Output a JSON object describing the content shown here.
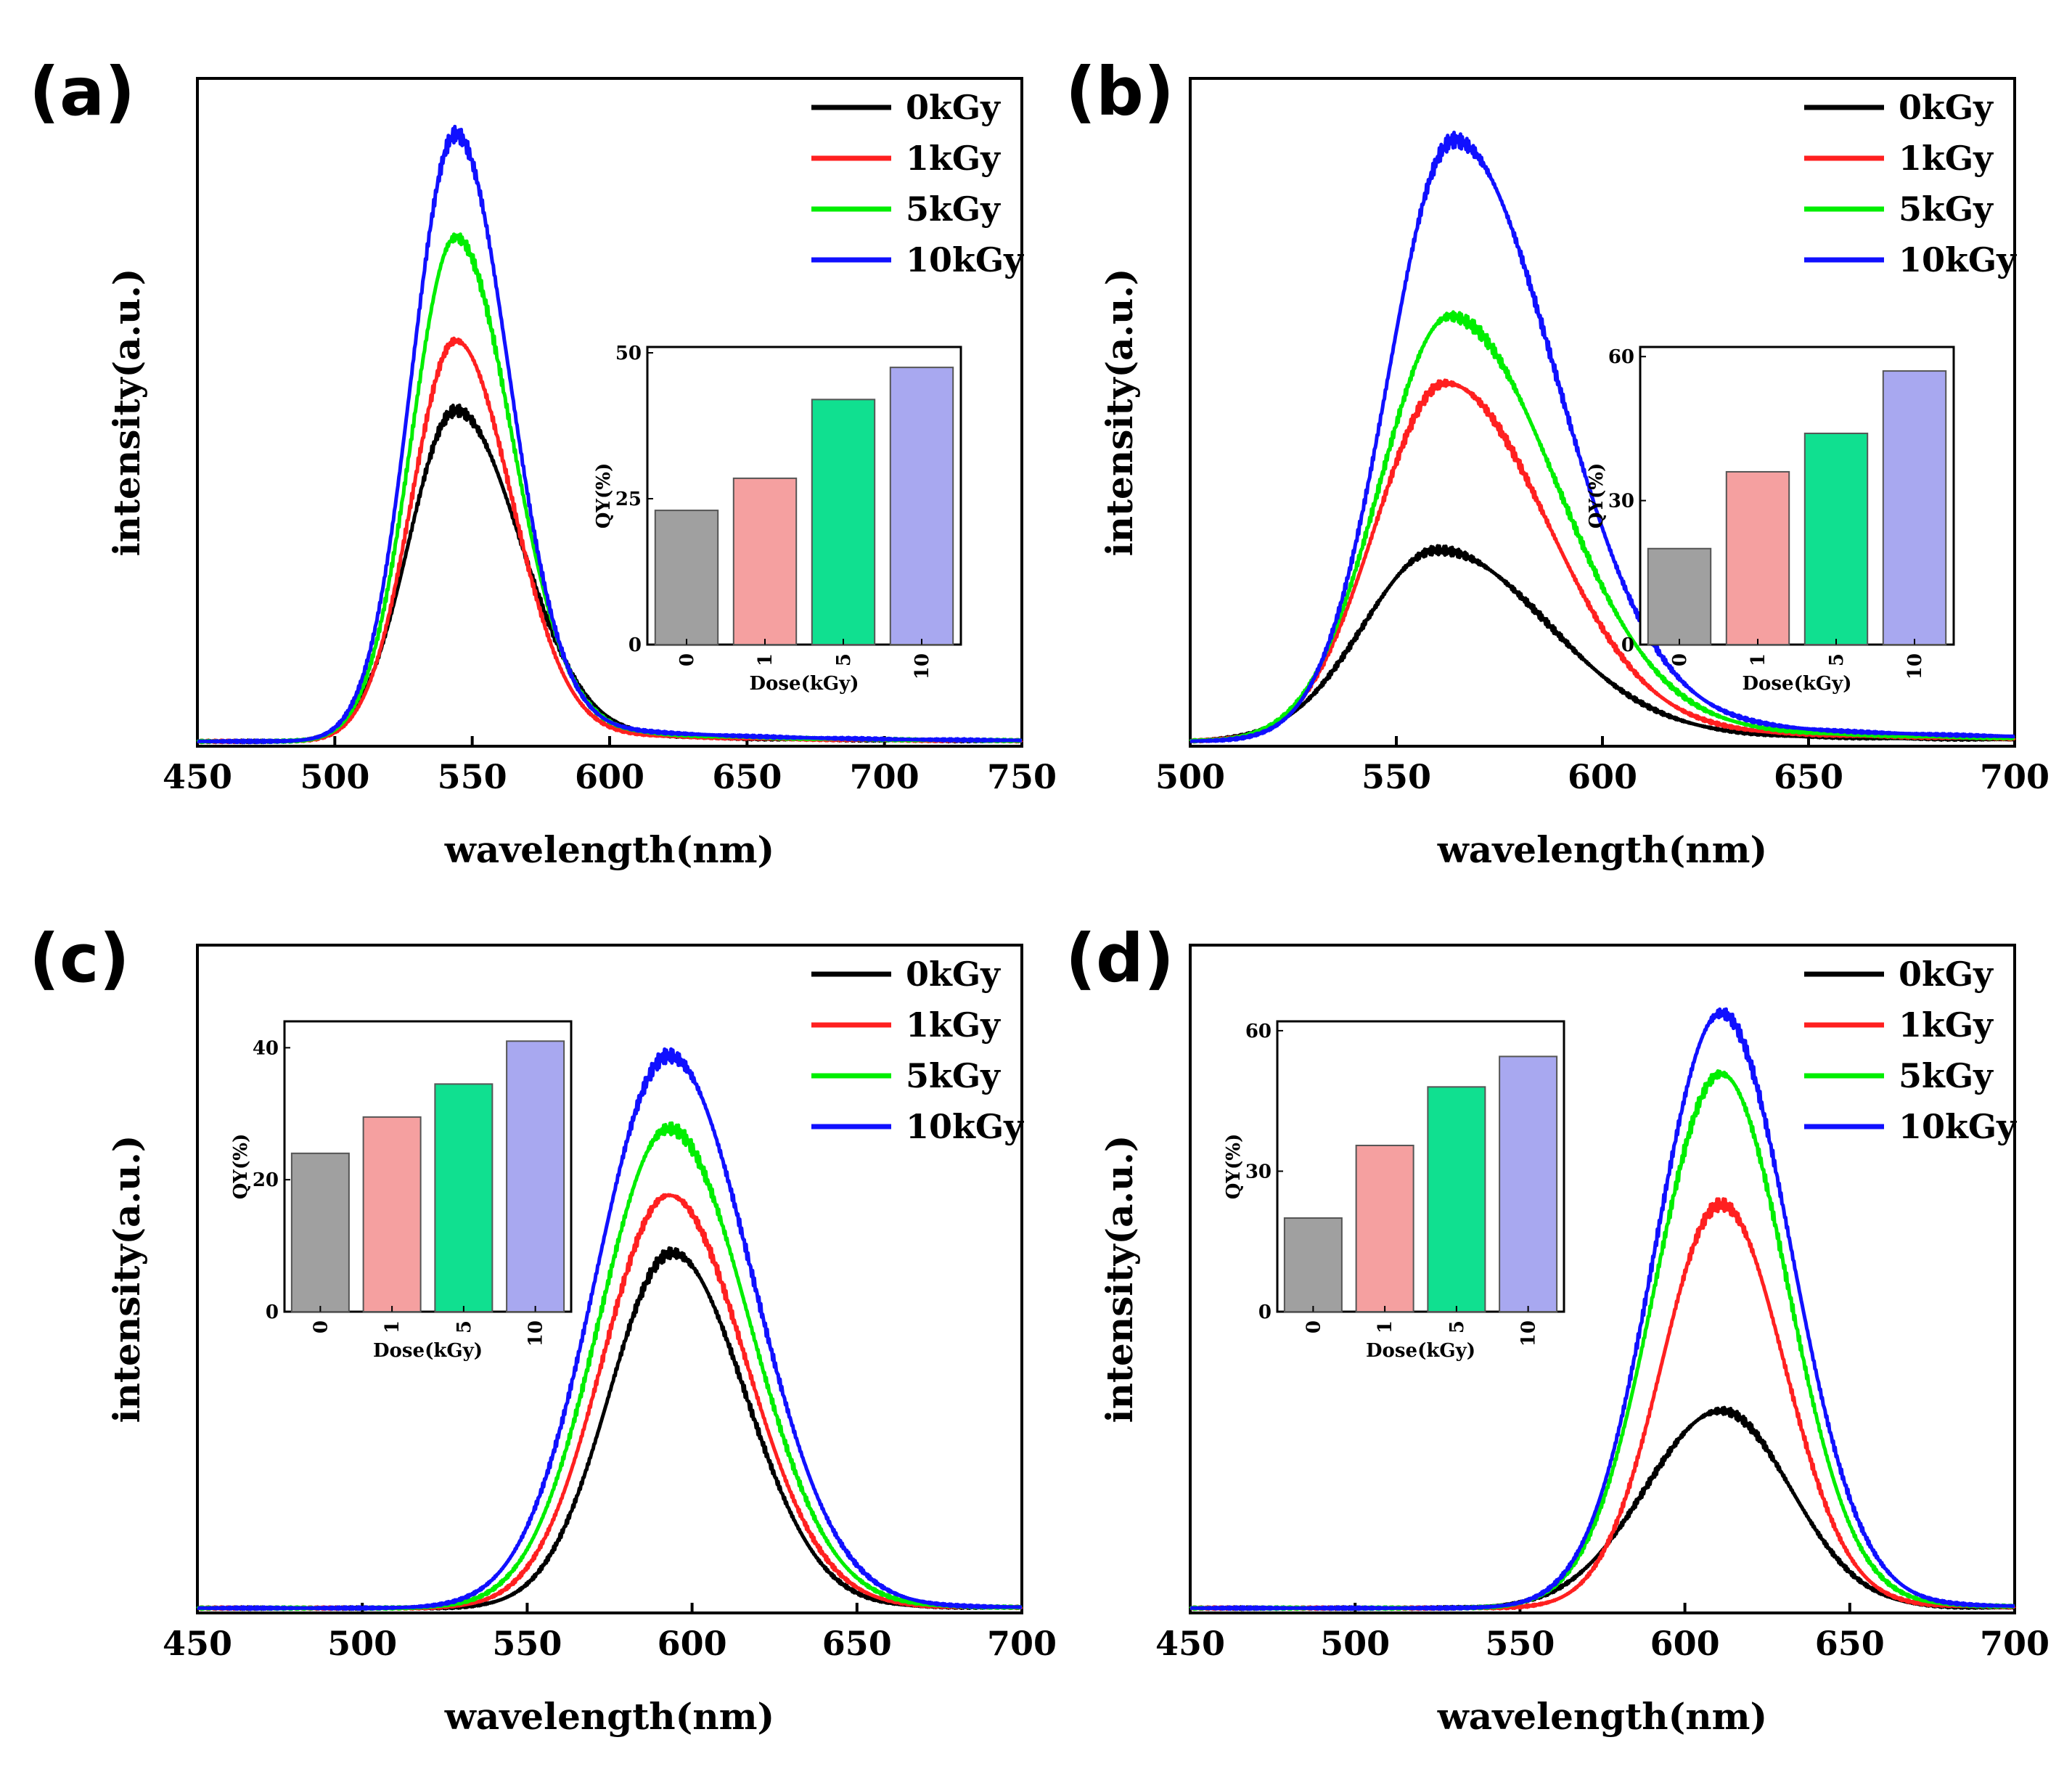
{
  "chart_data": [
    {
      "panel_label": "(a)",
      "type": "line",
      "xlabel": "wavelength(nm)",
      "ylabel": "intensity(a.u.)",
      "xlim": [
        450,
        750
      ],
      "xticks": [
        "450",
        "500",
        "550",
        "600",
        "650",
        "700",
        "750"
      ],
      "ylim": [
        0,
        1.1
      ],
      "legend_position": "top-right",
      "series": [
        {
          "name": "0kGy",
          "color": "#000000",
          "peak": 544,
          "amp": 0.545,
          "sigma_left": 17,
          "sigma_right": 23,
          "tail": 0.05
        },
        {
          "name": "1kGy",
          "color": "#ff2020",
          "peak": 544,
          "amp": 0.66,
          "sigma_left": 16,
          "sigma_right": 20,
          "tail": 0.045
        },
        {
          "name": "5kGy",
          "color": "#00ee00",
          "peak": 544,
          "amp": 0.83,
          "sigma_left": 16,
          "sigma_right": 20,
          "tail": 0.05
        },
        {
          "name": "10kGy",
          "color": "#1010ff",
          "peak": 544,
          "amp": 1.0,
          "sigma_left": 16,
          "sigma_right": 19,
          "tail": 0.05
        }
      ],
      "inset": {
        "type": "bar",
        "position": "right-center",
        "xlabel": "Dose(kGy)",
        "ylabel": "QY(%)",
        "categories": [
          "0",
          "1",
          "5",
          "10"
        ],
        "values": [
          23,
          28.5,
          42,
          47.5
        ],
        "ylim": [
          0,
          51
        ],
        "yticks": [
          "0",
          "25",
          "50"
        ],
        "colors": [
          "#a0a0a0",
          "#f5a0a0",
          "#10e090",
          "#a8a8f0"
        ]
      }
    },
    {
      "panel_label": "(b)",
      "type": "line",
      "xlabel": "wavelength(nm)",
      "ylabel": "intensity(a.u.)",
      "xlim": [
        500,
        700
      ],
      "xticks": [
        "500",
        "550",
        "600",
        "650",
        "700"
      ],
      "ylim": [
        0,
        1.1
      ],
      "legend_position": "top-right",
      "series": [
        {
          "name": "0kGy",
          "color": "#000000",
          "peak": 560,
          "amp": 0.315,
          "sigma_left": 18,
          "sigma_right": 26,
          "tail": 0.1
        },
        {
          "name": "1kGy",
          "color": "#ff2020",
          "peak": 562,
          "amp": 0.59,
          "sigma_left": 17,
          "sigma_right": 24,
          "tail": 0.08
        },
        {
          "name": "5kGy",
          "color": "#00ee00",
          "peak": 563,
          "amp": 0.7,
          "sigma_left": 17,
          "sigma_right": 25,
          "tail": 0.08
        },
        {
          "name": "10kGy",
          "color": "#1010ff",
          "peak": 564,
          "amp": 0.99,
          "sigma_left": 16,
          "sigma_right": 24,
          "tail": 0.08
        }
      ],
      "inset": {
        "type": "bar",
        "position": "right-center",
        "xlabel": "Dose(kGy)",
        "ylabel": "QY(%)",
        "categories": [
          "0",
          "1",
          "5",
          "10"
        ],
        "values": [
          20,
          36,
          44,
          57
        ],
        "ylim": [
          0,
          62
        ],
        "yticks": [
          "0",
          "30",
          "60"
        ],
        "colors": [
          "#a0a0a0",
          "#f5a0a0",
          "#10e090",
          "#a8a8f0"
        ]
      }
    },
    {
      "panel_label": "(c)",
      "type": "line",
      "xlabel": "wavelength(nm)",
      "ylabel": "intensity(a.u.)",
      "xlim": [
        450,
        700
      ],
      "xticks": [
        "450",
        "500",
        "550",
        "600",
        "650",
        "700"
      ],
      "ylim": [
        0,
        1.1
      ],
      "legend_position": "top-right",
      "series": [
        {
          "name": "0kGy",
          "color": "#000000",
          "peak": 594,
          "amp": 0.585,
          "sigma_left": 19,
          "sigma_right": 22,
          "tail": 0.01
        },
        {
          "name": "1kGy",
          "color": "#ff2020",
          "peak": 593,
          "amp": 0.68,
          "sigma_left": 20,
          "sigma_right": 23,
          "tail": 0.01
        },
        {
          "name": "5kGy",
          "color": "#00ee00",
          "peak": 593,
          "amp": 0.79,
          "sigma_left": 21,
          "sigma_right": 24,
          "tail": 0.01
        },
        {
          "name": "10kGy",
          "color": "#1010ff",
          "peak": 593,
          "amp": 0.91,
          "sigma_left": 22,
          "sigma_right": 25,
          "tail": 0.01
        }
      ],
      "inset": {
        "type": "bar",
        "position": "left-top",
        "xlabel": "Dose(kGy)",
        "ylabel": "QY(%)",
        "categories": [
          "0",
          "1",
          "5",
          "10"
        ],
        "values": [
          24,
          29.5,
          34.5,
          41
        ],
        "ylim": [
          0,
          44
        ],
        "yticks": [
          "0",
          "20",
          "40"
        ],
        "colors": [
          "#a0a0a0",
          "#f5a0a0",
          "#10e090",
          "#a8a8f0"
        ]
      }
    },
    {
      "panel_label": "(d)",
      "type": "line",
      "xlabel": "wavelength(nm)",
      "ylabel": "intensity(a.u.)",
      "xlim": [
        450,
        700
      ],
      "xticks": [
        "450",
        "500",
        "550",
        "600",
        "650",
        "700"
      ],
      "ylim": [
        0,
        1.1
      ],
      "legend_position": "top-right",
      "series": [
        {
          "name": "0kGy",
          "color": "#000000",
          "peak": 611,
          "amp": 0.325,
          "sigma_left": 23,
          "sigma_right": 21,
          "tail": 0.01
        },
        {
          "name": "1kGy",
          "color": "#ff2020",
          "peak": 611,
          "amp": 0.665,
          "sigma_left": 18,
          "sigma_right": 19,
          "tail": 0.015
        },
        {
          "name": "5kGy",
          "color": "#00ee00",
          "peak": 611,
          "amp": 0.88,
          "sigma_left": 20,
          "sigma_right": 20,
          "tail": 0.015
        },
        {
          "name": "10kGy",
          "color": "#1010ff",
          "peak": 611,
          "amp": 0.98,
          "sigma_left": 20,
          "sigma_right": 21,
          "tail": 0.015
        }
      ],
      "inset": {
        "type": "bar",
        "position": "left-top",
        "xlabel": "Dose(kGy)",
        "ylabel": "QY(%)",
        "categories": [
          "0",
          "1",
          "5",
          "10"
        ],
        "values": [
          20,
          35.5,
          48,
          54.5
        ],
        "ylim": [
          0,
          62
        ],
        "yticks": [
          "0",
          "30",
          "60"
        ],
        "colors": [
          "#a0a0a0",
          "#f5a0a0",
          "#10e090",
          "#a8a8f0"
        ]
      }
    }
  ]
}
